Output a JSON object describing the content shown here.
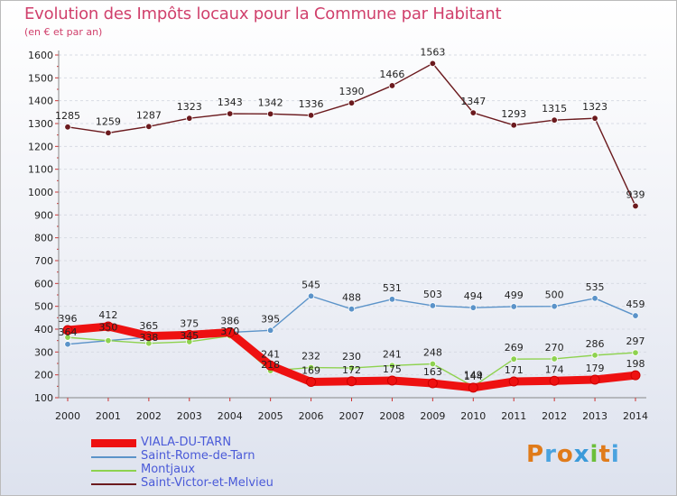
{
  "chart_data": {
    "type": "line",
    "title": "Evolution des Impôts locaux pour la Commune par Habitant",
    "subtitle": "(en € et par an)",
    "categories": [
      "2000",
      "2001",
      "2002",
      "2003",
      "2004",
      "2005",
      "2006",
      "2007",
      "2008",
      "2009",
      "2010",
      "2011",
      "2012",
      "2013",
      "2014"
    ],
    "ylim": [
      100,
      1600
    ],
    "yticks": [
      100,
      200,
      300,
      400,
      500,
      600,
      700,
      800,
      900,
      1000,
      1100,
      1200,
      1300,
      1400,
      1500,
      1600
    ],
    "series": [
      {
        "name": "Saint-Victor-et-Melvieu",
        "color": "#6b1a1e",
        "values": [
          1285,
          1259,
          1287,
          1323,
          1343,
          1342,
          1336,
          1390,
          1466,
          1563,
          1347,
          1293,
          1315,
          1323,
          939
        ]
      },
      {
        "name": "Saint-Rome-de-Tarn",
        "color": "#5b93c9",
        "values": [
          334,
          350,
          365,
          375,
          386,
          395,
          545,
          488,
          531,
          503,
          494,
          499,
          500,
          535,
          459
        ]
      },
      {
        "name": "Montjaux",
        "color": "#8ed24f",
        "values": [
          364,
          350,
          338,
          345,
          370,
          218,
          232,
          230,
          241,
          248,
          149,
          269,
          270,
          286,
          297
        ]
      },
      {
        "name": "VIALA-DU-TARN",
        "color": "#ee1111",
        "values": [
          396,
          412,
          370,
          375,
          386,
          241,
          169,
          172,
          175,
          163,
          144,
          171,
          174,
          179,
          198
        ]
      }
    ],
    "point_labels": {
      "Saint-Victor-et-Melvieu": [
        "1285",
        "1259",
        "1287",
        "1323",
        "1343",
        "1342",
        "1336",
        "1390",
        "1466",
        "1563",
        "1347",
        "1293",
        "1315",
        "1323",
        "939"
      ],
      "Saint-Rome-de-Tarn": [
        "",
        "",
        "365",
        "375",
        "386",
        "395",
        "545",
        "488",
        "531",
        "503",
        "494",
        "499",
        "500",
        "535",
        "459"
      ],
      "Montjaux": [
        "",
        "",
        "",
        "",
        "",
        "",
        "232",
        "230",
        "241",
        "248",
        "149",
        "269",
        "270",
        "286",
        "297"
      ],
      "VIALA-DU-TARN": [
        "396",
        "412",
        "",
        "",
        "",
        "241",
        "169",
        "172",
        "175",
        "163",
        "144",
        "171",
        "174",
        "179",
        "198"
      ]
    },
    "overlap_labels": [
      {
        "x": "2000",
        "y": 372,
        "text": "364"
      },
      {
        "x": "2001",
        "y": 395,
        "text": "350"
      },
      {
        "x": "2002",
        "y": 348,
        "text": "338"
      },
      {
        "x": "2003",
        "y": 357,
        "text": "345"
      },
      {
        "x": "2004",
        "y": 376,
        "text": "370"
      },
      {
        "x": "2005",
        "y": 230,
        "text": "218"
      }
    ],
    "legend": [
      {
        "name": "VIALA-DU-TARN",
        "color": "#ee1111",
        "weight": "thick"
      },
      {
        "name": "Saint-Rome-de-Tarn",
        "color": "#5b93c9",
        "weight": "thin"
      },
      {
        "name": "Montjaux",
        "color": "#8ed24f",
        "weight": "thin"
      },
      {
        "name": "Saint-Victor-et-Melvieu",
        "color": "#6b1a1e",
        "weight": "thin"
      }
    ]
  },
  "brand": {
    "logo_letters": [
      "P",
      "r",
      "o",
      "x",
      "i",
      "t",
      "i"
    ],
    "logo_colors": [
      "#e07b1a",
      "#4aa3df",
      "#e07b1a",
      "#3a9ad9",
      "#6cbf3a",
      "#e07b1a",
      "#4aa3df"
    ]
  }
}
